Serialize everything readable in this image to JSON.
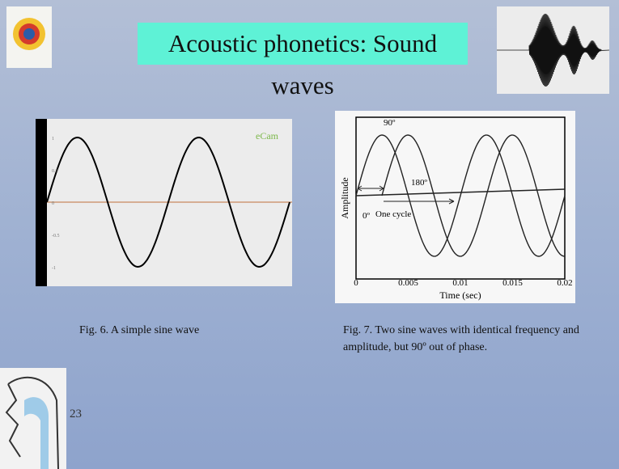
{
  "header": {
    "title": "Acoustic phonetics: Sound waves"
  },
  "figures": [
    {
      "caption": "Fig. 6. A simple sine wave",
      "y_tick_labels": [
        "1",
        "0.5",
        "0",
        "-0.5",
        "-1"
      ],
      "logo": "eCam"
    },
    {
      "caption": "Fig. 7. Two sine waves with identical frequency and amplitude, but 90º out of phase.",
      "y_label": "Amplitude",
      "x_label": "Time (sec)",
      "x_tick_labels": [
        "0",
        "0.005",
        "0.01",
        "0.015",
        "0.02"
      ],
      "annotations": [
        "90º",
        "180º",
        "0º",
        "One cycle"
      ]
    }
  ],
  "footer": {
    "slide_number": "23"
  }
}
